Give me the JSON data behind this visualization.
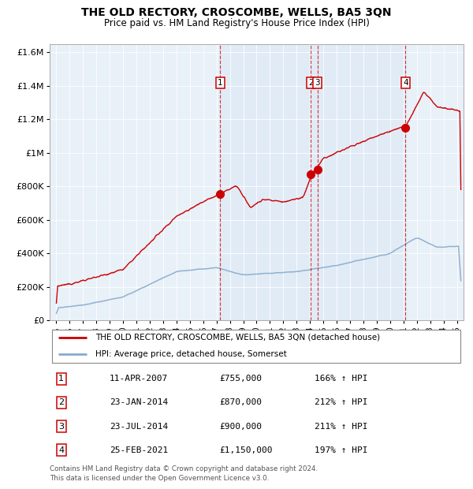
{
  "title": "THE OLD RECTORY, CROSCOMBE, WELLS, BA5 3QN",
  "subtitle": "Price paid vs. HM Land Registry's House Price Index (HPI)",
  "legend_line1": "THE OLD RECTORY, CROSCOMBE, WELLS, BA5 3QN (detached house)",
  "legend_line2": "HPI: Average price, detached house, Somerset",
  "footer": "Contains HM Land Registry data © Crown copyright and database right 2024.\nThis data is licensed under the Open Government Licence v3.0.",
  "sale_color": "#cc0000",
  "hpi_color": "#88aacc",
  "background_color": "#e8f0f8",
  "table_entries": [
    {
      "num": 1,
      "date": "11-APR-2007",
      "price": "£755,000",
      "hpi": "166% ↑ HPI"
    },
    {
      "num": 2,
      "date": "23-JAN-2014",
      "price": "£870,000",
      "hpi": "212% ↑ HPI"
    },
    {
      "num": 3,
      "date": "23-JUL-2014",
      "price": "£900,000",
      "hpi": "211% ↑ HPI"
    },
    {
      "num": 4,
      "date": "25-FEB-2021",
      "price": "£1,150,000",
      "hpi": "197% ↑ HPI"
    }
  ],
  "sale_dates_num": [
    2007.274,
    2014.063,
    2014.558,
    2021.148
  ],
  "sale_prices": [
    755000,
    870000,
    900000,
    1150000
  ],
  "ylim": [
    0,
    1650000
  ],
  "yticks": [
    0,
    200000,
    400000,
    600000,
    800000,
    1000000,
    1200000,
    1400000,
    1600000
  ],
  "ytick_labels": [
    "£0",
    "£200K",
    "£400K",
    "£600K",
    "£800K",
    "£1M",
    "£1.2M",
    "£1.4M",
    "£1.6M"
  ],
  "xlim_start": 1994.5,
  "xlim_end": 2025.5
}
